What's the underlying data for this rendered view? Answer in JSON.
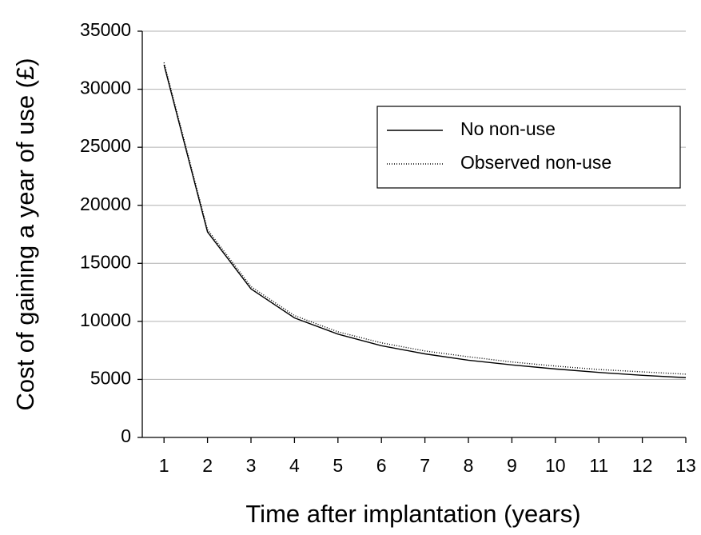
{
  "chart_data": {
    "type": "line",
    "x_label": "Time after implantation (years)",
    "y_label": "Cost of gaining a year of use (£)",
    "x": [
      1,
      2,
      3,
      4,
      5,
      6,
      7,
      8,
      9,
      10,
      11,
      12,
      13
    ],
    "series": [
      {
        "name": "No non-use",
        "color": "#000000",
        "line_style": "solid",
        "values": [
          32100,
          17700,
          12800,
          10300,
          8900,
          7900,
          7200,
          6650,
          6250,
          5900,
          5600,
          5350,
          5150
        ]
      },
      {
        "name": "Observed non-use",
        "color": "#000000",
        "line_style": "dotted",
        "values": [
          32300,
          17900,
          13000,
          10500,
          9100,
          8150,
          7450,
          6950,
          6500,
          6150,
          5850,
          5650,
          5450
        ]
      }
    ],
    "xlim": [
      0.5,
      13
    ],
    "xticks": [
      1,
      2,
      3,
      4,
      5,
      6,
      7,
      8,
      9,
      10,
      11,
      12,
      13
    ],
    "ylim": [
      0,
      35000
    ],
    "yticks": [
      0,
      5000,
      10000,
      15000,
      20000,
      25000,
      30000,
      35000
    ],
    "grid": true,
    "legend": "upper right"
  }
}
